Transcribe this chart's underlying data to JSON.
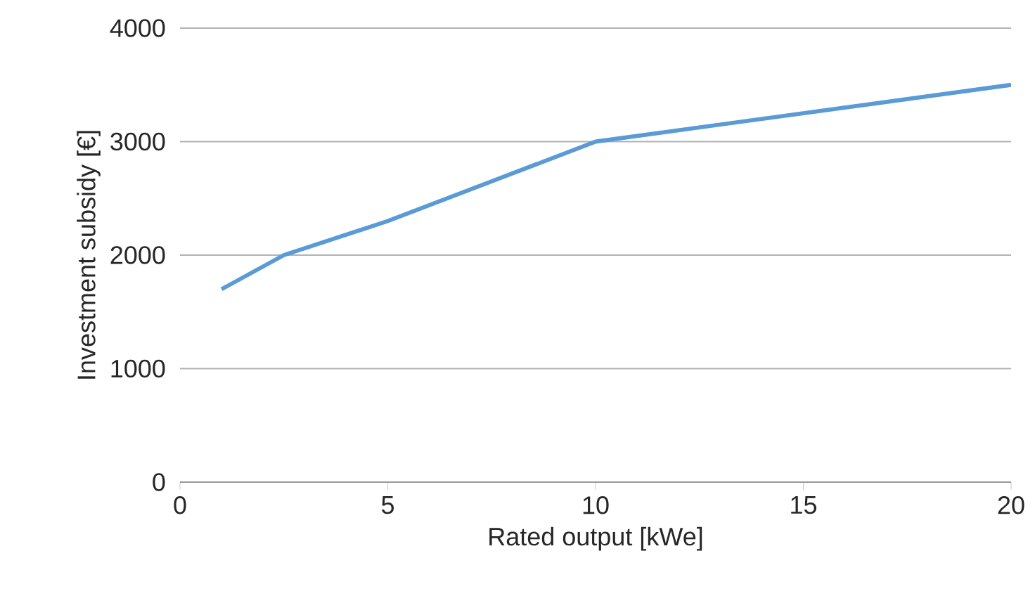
{
  "chart_data": {
    "type": "line",
    "xlabel": "Rated output [kWe]",
    "ylabel": "Investment subsidy [€]",
    "x": [
      1,
      2.5,
      5,
      10,
      20
    ],
    "series": [
      {
        "color": "#5b9bd5",
        "values": [
          1700,
          2000,
          2300,
          3000,
          3500
        ]
      }
    ],
    "xlim": [
      0,
      20
    ],
    "xticks": [
      0,
      5,
      10,
      15,
      20
    ],
    "ylim": [
      0,
      4000
    ],
    "yticks": [
      0,
      1000,
      2000,
      3000,
      4000
    ],
    "grid": "y",
    "marker": "none",
    "line_style": "solid"
  }
}
